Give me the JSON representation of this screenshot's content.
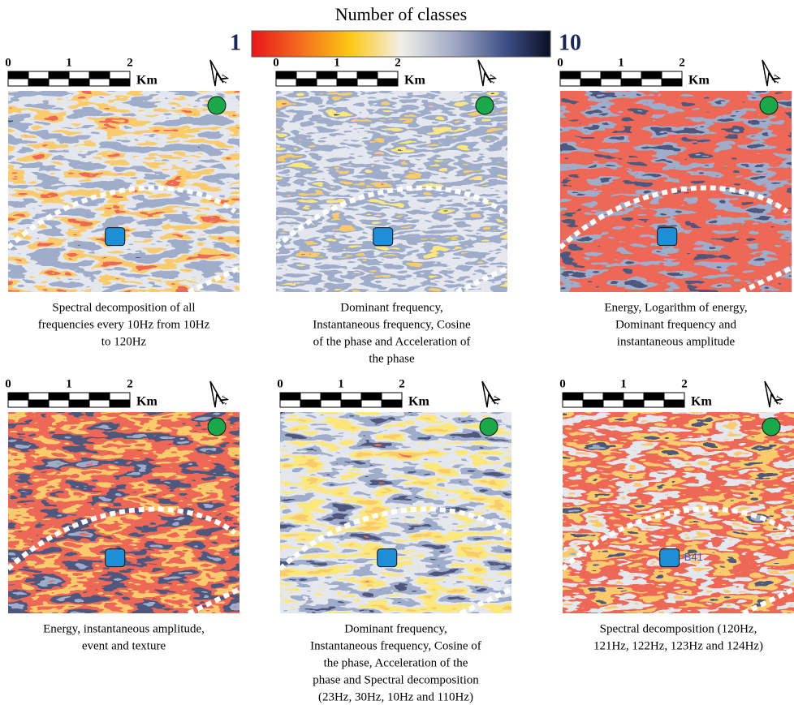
{
  "colorbar": {
    "title": "Number of classes",
    "min": 1,
    "max": 10
  },
  "scale_bar": {
    "ticks": [
      "0",
      "1",
      "2"
    ],
    "unit": "Km"
  },
  "north_label": "N",
  "panels": [
    {
      "caption": [
        "Spectral decomposition of all",
        "frequencies every 10Hz from 10Hz",
        "to 120Hz"
      ]
    },
    {
      "caption": [
        "Dominant frequency,",
        "Instantaneous frequency, Cosine",
        "of the phase and Acceleration of",
        "the phase"
      ]
    },
    {
      "caption": [
        "Energy, Logarithm of energy,",
        "Dominant frequency and",
        "instantaneous amplitude"
      ]
    },
    {
      "caption": [
        "Energy, instantaneous amplitude,",
        "event and texture"
      ]
    },
    {
      "caption": [
        "Dominant frequency,",
        "Instantaneous frequency, Cosine of",
        "the phase, Acceleration of the",
        "phase and Spectral decomposition",
        "(23Hz, 30Hz, 10Hz and 110Hz)"
      ]
    },
    {
      "caption": [
        "Spectral decomposition (120Hz,",
        "121Hz, 122Hz, 123Hz and 124Hz)"
      ],
      "marker_label": "B41"
    }
  ]
}
